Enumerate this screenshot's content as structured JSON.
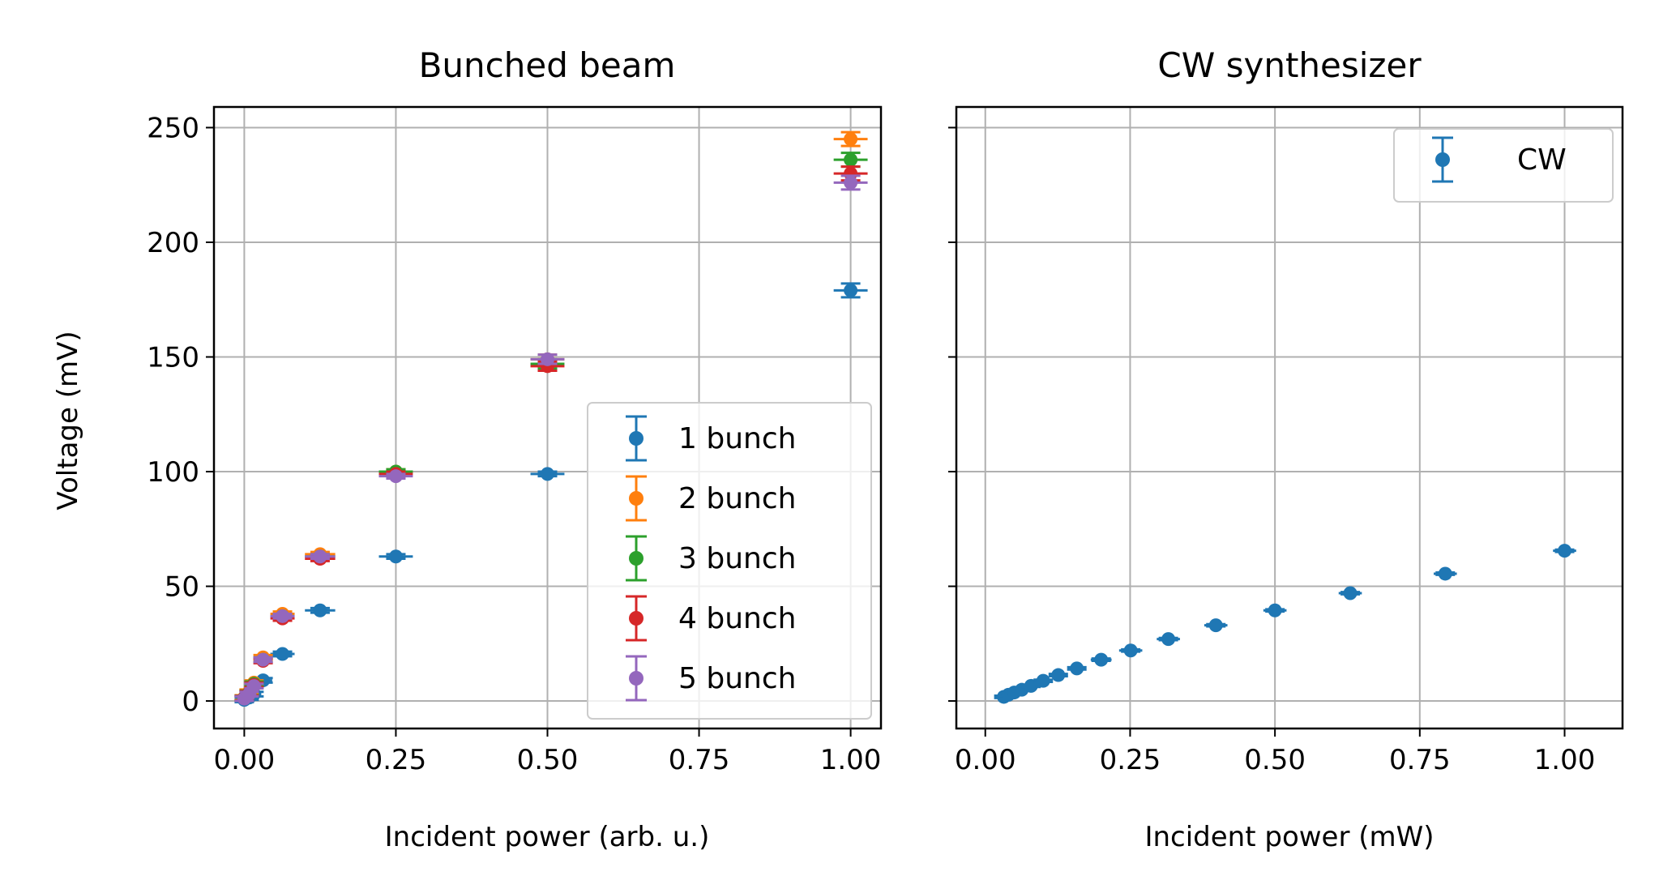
{
  "colors": {
    "c1": "#1f77b4",
    "c2": "#ff7f0e",
    "c3": "#2ca02c",
    "c4": "#d62728",
    "c5": "#9467bd",
    "grid": "#b0b0b0",
    "axes": "#000000"
  },
  "chart_data": [
    {
      "type": "scatter",
      "title": "Bunched beam",
      "xlabel": "Incident power (arb. u.)",
      "ylabel": "Voltage (mV)",
      "xlim": [
        -0.05,
        1.05
      ],
      "ylim": [
        -12,
        259
      ],
      "xticks": [
        0.0,
        0.25,
        0.5,
        0.75,
        1.0
      ],
      "xtick_labels": [
        "0.00",
        "0.25",
        "0.50",
        "0.75",
        "1.00"
      ],
      "yticks": [
        0,
        50,
        100,
        150,
        200,
        250
      ],
      "ytick_labels": [
        "0",
        "50",
        "100",
        "150",
        "200",
        "250"
      ],
      "grid": true,
      "legend": "lower-right",
      "series": [
        {
          "name": "1 bunch",
          "color_key": "c1",
          "x": [
            0.0,
            0.008,
            0.016,
            0.031,
            0.063,
            0.125,
            0.25,
            0.5,
            1.0
          ],
          "y": [
            0.5,
            1.5,
            3,
            9,
            20.5,
            39.5,
            63,
            99,
            179
          ],
          "xerr": [
            0.008,
            0.012,
            0.012,
            0.015,
            0.02,
            0.025,
            0.028,
            0.028,
            0.028
          ],
          "yerr": [
            1,
            1,
            1,
            1,
            1,
            1,
            1,
            1,
            3
          ]
        },
        {
          "name": "2 bunch",
          "color_key": "c2",
          "x": [
            0.0,
            0.008,
            0.016,
            0.031,
            0.063,
            0.125,
            0.25,
            0.5,
            1.0
          ],
          "y": [
            1.5,
            4,
            8,
            19,
            38,
            64,
            100,
            149,
            245
          ],
          "xerr": [
            0.008,
            0.012,
            0.012,
            0.015,
            0.02,
            0.025,
            0.028,
            0.028,
            0.028
          ],
          "yerr": [
            1,
            1,
            1,
            1,
            1,
            1,
            1,
            2,
            3
          ]
        },
        {
          "name": "3 bunch",
          "color_key": "c3",
          "x": [
            0.0,
            0.008,
            0.016,
            0.031,
            0.063,
            0.125,
            0.25,
            0.5,
            1.0
          ],
          "y": [
            1.3,
            3.5,
            7.5,
            18,
            37,
            63,
            100,
            147,
            236
          ],
          "xerr": [
            0.008,
            0.012,
            0.012,
            0.015,
            0.02,
            0.025,
            0.028,
            0.028,
            0.028
          ],
          "yerr": [
            1,
            1,
            1,
            1,
            1,
            1,
            1,
            2,
            3
          ]
        },
        {
          "name": "4 bunch",
          "color_key": "c4",
          "x": [
            0.0,
            0.008,
            0.016,
            0.031,
            0.063,
            0.125,
            0.25,
            0.5,
            1.0
          ],
          "y": [
            1.2,
            3.3,
            7,
            17.5,
            36,
            62,
            99,
            146,
            230
          ],
          "xerr": [
            0.008,
            0.012,
            0.012,
            0.015,
            0.02,
            0.025,
            0.028,
            0.028,
            0.028
          ],
          "yerr": [
            1,
            1,
            1,
            1,
            1,
            1,
            1,
            2,
            3
          ]
        },
        {
          "name": "5 bunch",
          "color_key": "c5",
          "x": [
            0.0,
            0.008,
            0.016,
            0.031,
            0.063,
            0.125,
            0.25,
            0.5,
            1.0
          ],
          "y": [
            1,
            3,
            6.5,
            18,
            37,
            63,
            98,
            149,
            226
          ],
          "xerr": [
            0.008,
            0.012,
            0.012,
            0.015,
            0.02,
            0.025,
            0.028,
            0.028,
            0.028
          ],
          "yerr": [
            1,
            1,
            1,
            1,
            1,
            1,
            1,
            2,
            3
          ]
        }
      ]
    },
    {
      "type": "scatter",
      "title": "CW synthesizer",
      "xlabel": "Incident power (mW)",
      "ylabel": "",
      "xlim": [
        -0.05,
        1.1
      ],
      "ylim": [
        -12,
        259
      ],
      "xticks": [
        0.0,
        0.25,
        0.5,
        0.75,
        1.0
      ],
      "xtick_labels": [
        "0.00",
        "0.25",
        "0.50",
        "0.75",
        "1.00"
      ],
      "yticks": [
        0,
        50,
        100,
        150,
        200,
        250
      ],
      "ytick_labels": [
        "",
        "",
        "",
        "",
        "",
        ""
      ],
      "grid": true,
      "legend": "upper-right",
      "series": [
        {
          "name": "CW",
          "color_key": "c1",
          "x": [
            0.032,
            0.04,
            0.05,
            0.063,
            0.079,
            0.1,
            0.126,
            0.158,
            0.2,
            0.251,
            0.316,
            0.398,
            0.5,
            0.63,
            0.794,
            1.0
          ],
          "y": [
            1.8,
            2.7,
            3.7,
            4.9,
            6.6,
            8.8,
            11.3,
            14.2,
            18,
            22,
            27,
            33,
            39.5,
            47,
            55.5,
            65.5
          ],
          "xerr": [
            0.003,
            0.004,
            0.005,
            0.006,
            0.008,
            0.01,
            0.012,
            0.015,
            0.018,
            0.02,
            0.02,
            0.02,
            0.02,
            0.02,
            0.02,
            0.02
          ],
          "yerr": [
            0.5,
            0.5,
            0.5,
            0.5,
            0.5,
            0.5,
            0.5,
            0.5,
            0.5,
            0.5,
            0.5,
            0.5,
            0.5,
            0.5,
            0.5,
            0.5
          ]
        }
      ]
    }
  ]
}
